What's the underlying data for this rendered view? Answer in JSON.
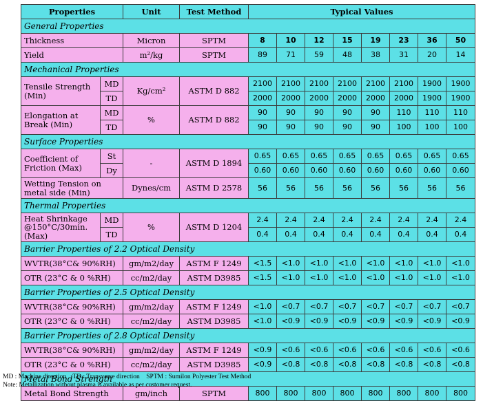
{
  "header": {
    "properties": "Properties",
    "unit": "Unit",
    "test_method": "Test Method",
    "typical_values": "Typical Values"
  },
  "sections": {
    "general": "General Properties",
    "mechanical": "Mechanical Properties",
    "surface": "Surface Properties",
    "thermal": "Thermal Properties",
    "barrier22": "Barrier Properties of 2.2 Optical Density",
    "barrier25": "Barrier Properties of 2.5 Optical Density",
    "barrier28": "Barrier Properties of 2.8 Optical Density",
    "metalbond": "Metal Bond Strength"
  },
  "thickness": {
    "label": "Thickness",
    "unit": "Micron",
    "method": "SPTM",
    "values": [
      "8",
      "10",
      "12",
      "15",
      "19",
      "23",
      "36",
      "50"
    ]
  },
  "yield": {
    "label": "Yield",
    "unit": "m²/kg",
    "method": "SPTM",
    "values": [
      "89",
      "71",
      "59",
      "48",
      "38",
      "31",
      "20",
      "14"
    ]
  },
  "tensile": {
    "label": "Tensile Strength (Min)",
    "unit": "Kg/cm²",
    "method": "ASTM D 882",
    "md_label": "MD",
    "td_label": "TD",
    "md": [
      "2100",
      "2100",
      "2100",
      "2100",
      "2100",
      "2100",
      "1900",
      "1900"
    ],
    "td": [
      "2000",
      "2000",
      "2000",
      "2000",
      "2000",
      "2000",
      "1900",
      "1900"
    ]
  },
  "elongation": {
    "label": "Elongation at Break (Min)",
    "unit": "%",
    "method": "ASTM D 882",
    "md_label": "MD",
    "td_label": "TD",
    "md": [
      "90",
      "90",
      "90",
      "90",
      "90",
      "110",
      "110",
      "110"
    ],
    "td": [
      "90",
      "90",
      "90",
      "90",
      "90",
      "100",
      "100",
      "100"
    ]
  },
  "cof": {
    "label": "Coefficient of Friction (Max)",
    "unit": "-",
    "method": "ASTM D 1894",
    "st_label": "St",
    "dy_label": "Dy",
    "st": [
      "0.65",
      "0.65",
      "0.65",
      "0.65",
      "0.65",
      "0.65",
      "0.65",
      "0.65"
    ],
    "dy": [
      "0.60",
      "0.60",
      "0.60",
      "0.60",
      "0.60",
      "0.60",
      "0.60",
      "0.60"
    ]
  },
  "wetting": {
    "label": "Wetting Tension on metal side (Min)",
    "unit": "Dynes/cm",
    "method": "ASTM D 2578",
    "values": [
      "56",
      "56",
      "56",
      "56",
      "56",
      "56",
      "56",
      "56"
    ]
  },
  "shrinkage": {
    "label": "Heat Shrinkage @150°C/30min. (Max)",
    "unit": "%",
    "method": "ASTM D 1204",
    "md_label": "MD",
    "td_label": "TD",
    "md": [
      "2.4",
      "2.4",
      "2.4",
      "2.4",
      "2.4",
      "2.4",
      "2.4",
      "2.4"
    ],
    "td": [
      "0.4",
      "0.4",
      "0.4",
      "0.4",
      "0.4",
      "0.4",
      "0.4",
      "0.4"
    ]
  },
  "b22": {
    "wvtr_label": "WVTR(38°C& 90%RH)",
    "wvtr_unit": "gm/m2/day",
    "wvtr_method": "ASTM F 1249",
    "wvtr": [
      "<1.5",
      "<1.0",
      "<1.0",
      "<1.0",
      "<1.0",
      "<1.0",
      "<1.0",
      "<1.0"
    ],
    "otr_label": "OTR (23°C & 0 %RH)",
    "otr_unit": "cc/m2/day",
    "otr_method": "ASTM D3985",
    "otr": [
      "<1.5",
      "<1.0",
      "<1.0",
      "<1.0",
      "<1.0",
      "<1.0",
      "<1.0",
      "<1.0"
    ]
  },
  "b25": {
    "wvtr_label": "WVTR(38°C& 90%RH)",
    "wvtr_unit": "gm/m2/day",
    "wvtr_method": "ASTM F 1249",
    "wvtr": [
      "<1.0",
      "<0.7",
      "<0.7",
      "<0.7",
      "<0.7",
      "<0.7",
      "<0.7",
      "<0.7"
    ],
    "otr_label": "OTR (23°C & 0 %RH)",
    "otr_unit": "cc/m2/day",
    "otr_method": "ASTM D3985",
    "otr": [
      "<1.0",
      "<0.9",
      "<0.9",
      "<0.9",
      "<0.9",
      "<0.9",
      "<0.9",
      "<0.9"
    ]
  },
  "b28": {
    "wvtr_label": "WVTR(38°C& 90%RH)",
    "wvtr_unit": "gm/m2/day",
    "wvtr_method": "ASTM F 1249",
    "wvtr": [
      "<0.9",
      "<0.6",
      "<0.6",
      "<0.6",
      "<0.6",
      "<0.6",
      "<0.6",
      "<0.6"
    ],
    "otr_label": "OTR (23°C & 0 %RH)",
    "otr_unit": "cc/m2/day",
    "otr_method": "ASTM D3985",
    "otr": [
      "<0.9",
      "<0.8",
      "<0.8",
      "<0.8",
      "<0.8",
      "<0.8",
      "<0.8",
      "<0.8"
    ]
  },
  "metalbond": {
    "label": "Metal Bond Strength",
    "unit": "gm/inch",
    "method": "SPTM",
    "values": [
      "800",
      "800",
      "800",
      "800",
      "800",
      "800",
      "800",
      "800"
    ]
  },
  "notes": {
    "line1": "MD : Machine direction    TD : Transverse direction    SPTM : Sumilon Polyester Test Method",
    "line2": "Note: Metallization without plasma is available as per customer request."
  },
  "colors": {
    "header_cyan": "#5ce0e6",
    "label_pink": "#f5b0ec"
  }
}
